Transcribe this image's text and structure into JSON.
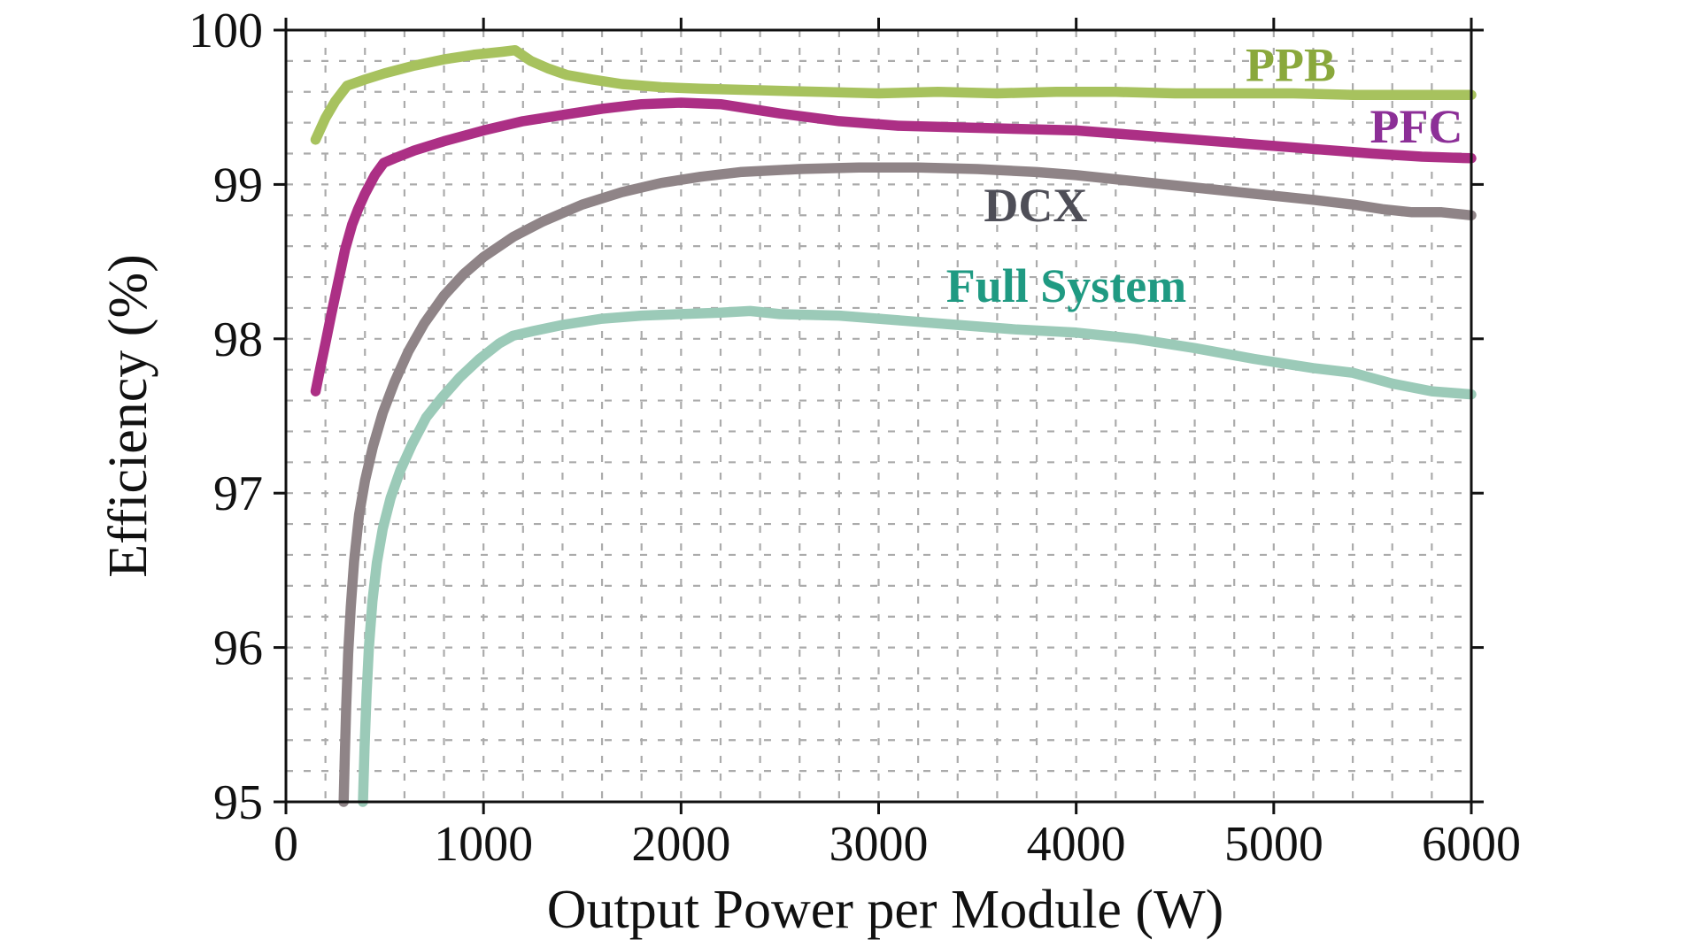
{
  "figure": {
    "background": "#ffffff",
    "frame_color": "#111111",
    "grid_color": "#ababab"
  },
  "chart_data": {
    "type": "line",
    "title": "",
    "xlabel": "Output Power per Module (W)",
    "ylabel": "Efficiency (%)",
    "xlim": [
      0,
      6000
    ],
    "ylim": [
      95,
      100
    ],
    "xticks": [
      0,
      1000,
      2000,
      3000,
      4000,
      5000,
      6000
    ],
    "yticks": [
      95,
      96,
      97,
      98,
      99,
      100
    ],
    "minor_x_step": 200,
    "minor_y_step": 0.2,
    "grid": "dashed minor+major, both axes",
    "legend": "inline-labels",
    "series": [
      {
        "name": "Full System",
        "color": "#9bcab8",
        "label_color": "#1f9a82",
        "label_at": {
          "x": 3950,
          "y": 98.35
        },
        "points": [
          [
            390,
            95.0
          ],
          [
            398,
            95.35
          ],
          [
            408,
            95.7
          ],
          [
            420,
            96.0
          ],
          [
            438,
            96.3
          ],
          [
            460,
            96.55
          ],
          [
            490,
            96.77
          ],
          [
            530,
            96.97
          ],
          [
            580,
            97.15
          ],
          [
            640,
            97.32
          ],
          [
            710,
            97.49
          ],
          [
            790,
            97.62
          ],
          [
            880,
            97.75
          ],
          [
            980,
            97.87
          ],
          [
            1080,
            97.97
          ],
          [
            1150,
            98.02
          ],
          [
            1250,
            98.05
          ],
          [
            1400,
            98.09
          ],
          [
            1600,
            98.13
          ],
          [
            1800,
            98.15
          ],
          [
            2000,
            98.16
          ],
          [
            2200,
            98.17
          ],
          [
            2350,
            98.18
          ],
          [
            2500,
            98.16
          ],
          [
            2800,
            98.15
          ],
          [
            3100,
            98.12
          ],
          [
            3400,
            98.09
          ],
          [
            3700,
            98.06
          ],
          [
            4000,
            98.04
          ],
          [
            4300,
            98.0
          ],
          [
            4600,
            97.94
          ],
          [
            4900,
            97.87
          ],
          [
            5200,
            97.81
          ],
          [
            5400,
            97.78
          ],
          [
            5600,
            97.71
          ],
          [
            5800,
            97.66
          ],
          [
            6000,
            97.64
          ]
        ]
      },
      {
        "name": "DCX",
        "color": "#8f8487",
        "label_color": "#4e4e57",
        "label_at": {
          "x": 3795,
          "y": 98.87
        },
        "points": [
          [
            292,
            95.0
          ],
          [
            298,
            95.3
          ],
          [
            305,
            95.62
          ],
          [
            315,
            95.96
          ],
          [
            328,
            96.26
          ],
          [
            345,
            96.56
          ],
          [
            370,
            96.86
          ],
          [
            400,
            97.08
          ],
          [
            440,
            97.3
          ],
          [
            490,
            97.52
          ],
          [
            550,
            97.72
          ],
          [
            620,
            97.92
          ],
          [
            700,
            98.1
          ],
          [
            800,
            98.28
          ],
          [
            900,
            98.42
          ],
          [
            1000,
            98.53
          ],
          [
            1150,
            98.66
          ],
          [
            1300,
            98.76
          ],
          [
            1500,
            98.87
          ],
          [
            1700,
            98.95
          ],
          [
            1900,
            99.01
          ],
          [
            2100,
            99.05
          ],
          [
            2300,
            99.08
          ],
          [
            2600,
            99.1
          ],
          [
            2900,
            99.11
          ],
          [
            3200,
            99.11
          ],
          [
            3500,
            99.1
          ],
          [
            3800,
            99.08
          ],
          [
            4000,
            99.06
          ],
          [
            4300,
            99.02
          ],
          [
            4600,
            98.98
          ],
          [
            4900,
            98.94
          ],
          [
            5200,
            98.9
          ],
          [
            5400,
            98.87
          ],
          [
            5550,
            98.84
          ],
          [
            5700,
            98.82
          ],
          [
            5850,
            98.82
          ],
          [
            6000,
            98.8
          ]
        ]
      },
      {
        "name": "PFC",
        "color": "#ac2f85",
        "label_color": "#8c2f97",
        "label_at": {
          "x": 5722,
          "y": 99.38
        },
        "points": [
          [
            150,
            97.66
          ],
          [
            175,
            97.82
          ],
          [
            200,
            97.97
          ],
          [
            230,
            98.16
          ],
          [
            260,
            98.34
          ],
          [
            300,
            98.58
          ],
          [
            335,
            98.74
          ],
          [
            365,
            98.84
          ],
          [
            400,
            98.94
          ],
          [
            450,
            99.06
          ],
          [
            495,
            99.14
          ],
          [
            550,
            99.17
          ],
          [
            650,
            99.22
          ],
          [
            800,
            99.28
          ],
          [
            1000,
            99.35
          ],
          [
            1200,
            99.41
          ],
          [
            1400,
            99.45
          ],
          [
            1600,
            99.49
          ],
          [
            1800,
            99.52
          ],
          [
            2000,
            99.53
          ],
          [
            2200,
            99.52
          ],
          [
            2500,
            99.46
          ],
          [
            2800,
            99.41
          ],
          [
            3100,
            99.38
          ],
          [
            3400,
            99.37
          ],
          [
            3700,
            99.36
          ],
          [
            4000,
            99.35
          ],
          [
            4300,
            99.32
          ],
          [
            4600,
            99.29
          ],
          [
            4900,
            99.26
          ],
          [
            5200,
            99.23
          ],
          [
            5500,
            99.2
          ],
          [
            5750,
            99.18
          ],
          [
            6000,
            99.17
          ]
        ]
      },
      {
        "name": "PPB",
        "color": "#a7c25e",
        "label_color": "#8aa83c",
        "label_at": {
          "x": 5086,
          "y": 99.78
        },
        "points": [
          [
            150,
            99.29
          ],
          [
            200,
            99.43
          ],
          [
            250,
            99.54
          ],
          [
            310,
            99.64
          ],
          [
            400,
            99.68
          ],
          [
            500,
            99.72
          ],
          [
            650,
            99.77
          ],
          [
            800,
            99.81
          ],
          [
            950,
            99.84
          ],
          [
            1100,
            99.86
          ],
          [
            1160,
            99.87
          ],
          [
            1240,
            99.8
          ],
          [
            1330,
            99.75
          ],
          [
            1420,
            99.71
          ],
          [
            1550,
            99.68
          ],
          [
            1700,
            99.65
          ],
          [
            1900,
            99.63
          ],
          [
            2100,
            99.62
          ],
          [
            2400,
            99.61
          ],
          [
            2700,
            99.6
          ],
          [
            3000,
            99.59
          ],
          [
            3300,
            99.6
          ],
          [
            3600,
            99.59
          ],
          [
            3900,
            99.6
          ],
          [
            4200,
            99.6
          ],
          [
            4500,
            99.59
          ],
          [
            4800,
            99.59
          ],
          [
            5100,
            99.59
          ],
          [
            5400,
            99.58
          ],
          [
            5700,
            99.58
          ],
          [
            6000,
            99.58
          ]
        ]
      }
    ]
  }
}
